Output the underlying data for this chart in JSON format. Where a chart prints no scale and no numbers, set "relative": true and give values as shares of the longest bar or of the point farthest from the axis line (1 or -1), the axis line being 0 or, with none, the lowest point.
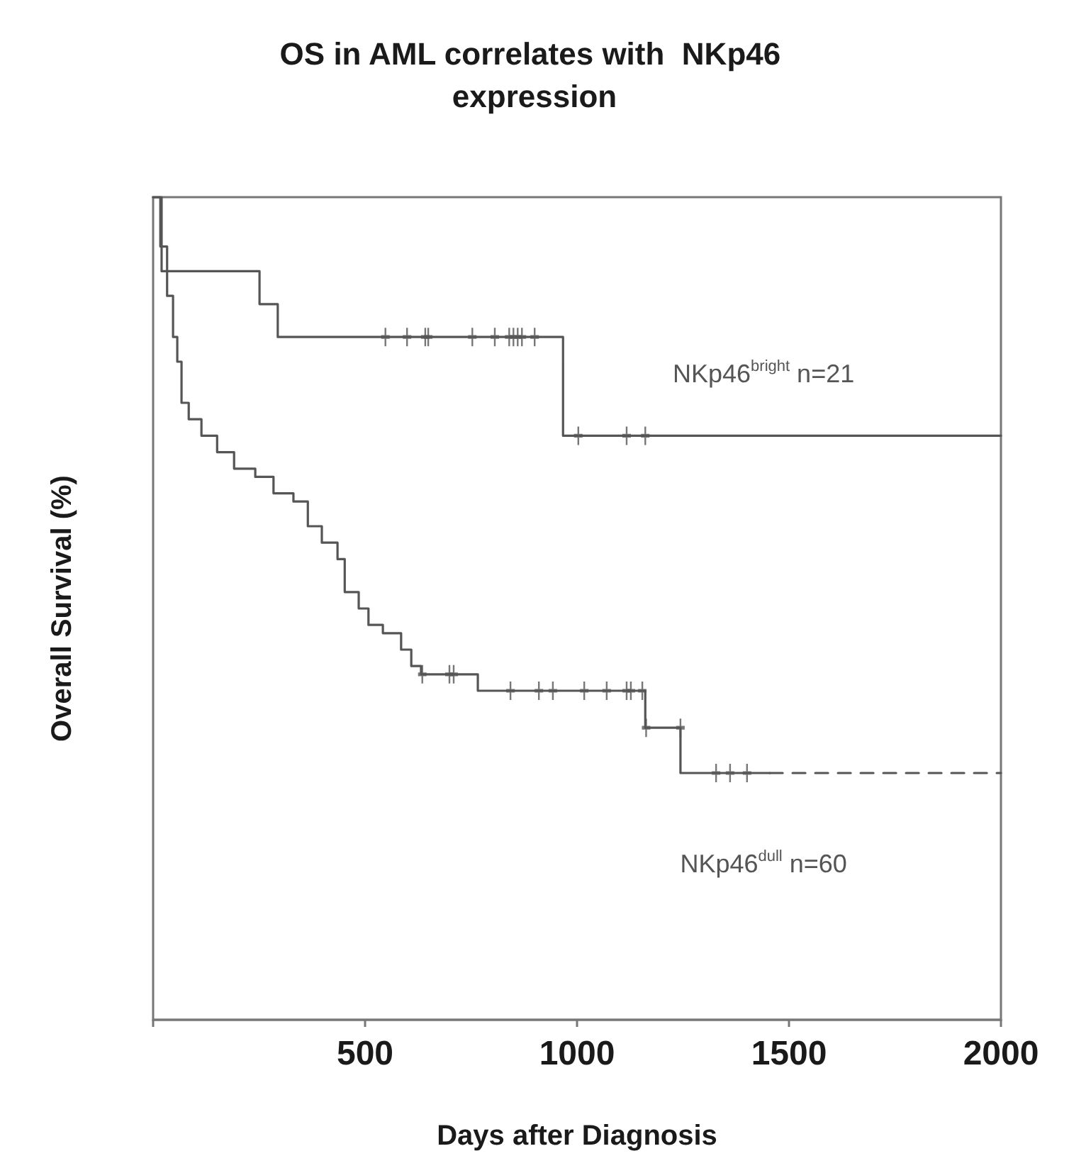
{
  "chart_data": {
    "type": "step",
    "title": "OS in AML correlates with  NKp46 expression",
    "xlabel": "Days after Diagnosis",
    "ylabel": "Overall Survival (%)",
    "relative": true,
    "xlim": [
      0,
      2000
    ],
    "xticks": [
      {
        "value": 0,
        "label": null
      },
      500,
      1000,
      1500,
      2000
    ],
    "grid": false,
    "legend": false,
    "series": [
      {
        "name": "NKp46$^{bright}$ n=21",
        "color": "#555555",
        "marker": "none",
        "line_style": "solid",
        "x": [
          0,
          20,
          251,
          294,
          967,
          2000
        ],
        "values": [
          1.0,
          0.91,
          0.87,
          0.83,
          0.71,
          0.71
        ]
      },
      {
        "type": "scatter",
        "color": "#555555",
        "marker": "cross",
        "x": [
          548,
          599,
          642,
          649,
          753,
          806,
          840,
          850,
          860,
          870,
          900,
          1003,
          1117,
          1161
        ],
        "values": [
          0.83,
          0.83,
          0.83,
          0.83,
          0.83,
          0.83,
          0.83,
          0.83,
          0.83,
          0.83,
          0.83,
          0.71,
          0.71,
          0.71
        ]
      },
      {
        "name": "NKp46$^{dull}$ n=60",
        "color": "#555555",
        "marker": "none",
        "line_style": "solid",
        "x": [
          0,
          17,
          33,
          47,
          57,
          67,
          84,
          114,
          151,
          191,
          241,
          284,
          331,
          365,
          398,
          435,
          452,
          485,
          508,
          542,
          585,
          609,
          632,
          766,
          1161,
          1244,
          1455
        ],
        "values": [
          1.0,
          0.94,
          0.88,
          0.83,
          0.8,
          0.75,
          0.73,
          0.71,
          0.69,
          0.67,
          0.66,
          0.64,
          0.63,
          0.6,
          0.58,
          0.56,
          0.52,
          0.5,
          0.48,
          0.47,
          0.45,
          0.43,
          0.42,
          0.4,
          0.355,
          0.3,
          0.3
        ]
      },
      {
        "type": "scatter",
        "color": "#555555",
        "marker": "cross",
        "x": [
          635,
          699,
          709,
          843,
          910,
          943,
          1017,
          1070,
          1117,
          1127,
          1154,
          1163,
          1244,
          1328,
          1361,
          1401
        ],
        "values": [
          0.42,
          0.42,
          0.42,
          0.4,
          0.4,
          0.4,
          0.4,
          0.4,
          0.4,
          0.4,
          0.4,
          0.355,
          0.355,
          0.3,
          0.3,
          0.3
        ]
      },
      {
        "color": "#555555",
        "marker": "none",
        "line_style": "dashed",
        "x": [
          1455,
          2000
        ],
        "values": [
          0.3,
          0.3
        ]
      }
    ]
  }
}
